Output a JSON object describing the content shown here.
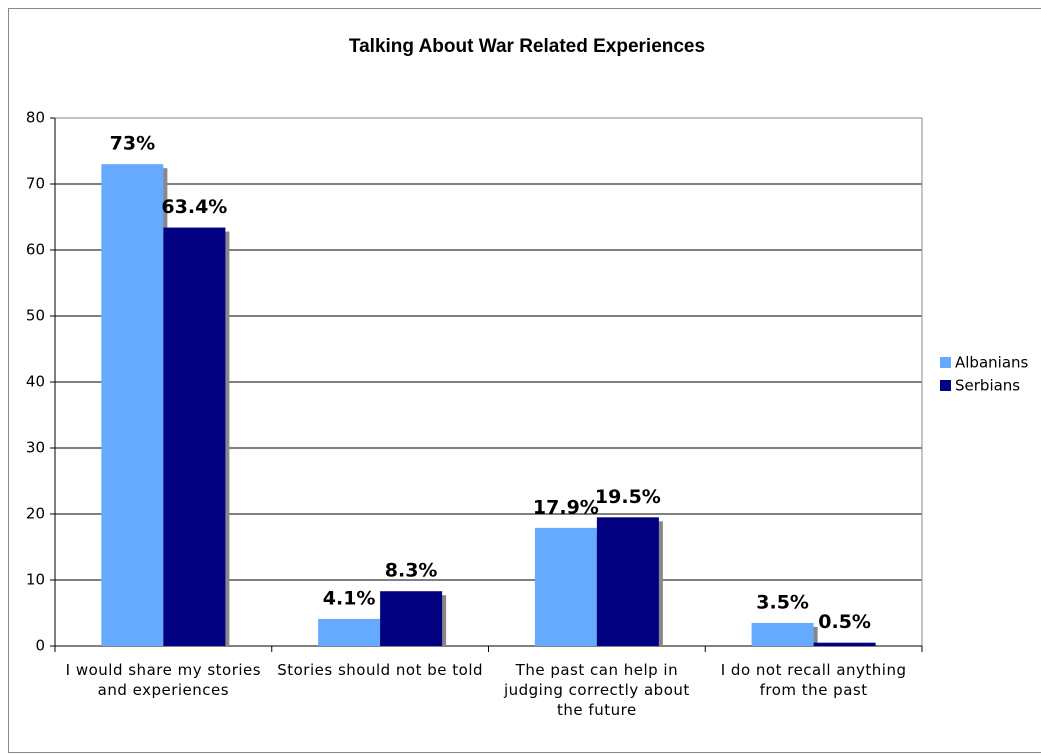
{
  "chart_data": {
    "type": "bar",
    "title": "Talking About War Related Experiences",
    "categories": [
      "I would share my stories\nand experiences",
      "Stories should not be told",
      "The past can help in\njudging correctly about\nthe future",
      "I do not recall anything\nfrom the past"
    ],
    "series": [
      {
        "name": "Albanians",
        "color": "#66aaff",
        "values": [
          73,
          4.1,
          17.9,
          3.5
        ],
        "value_labels": [
          "73%",
          "4.1%",
          "17.9%",
          "3.5%"
        ]
      },
      {
        "name": "Serbians",
        "color": "#000080",
        "values": [
          63.4,
          8.3,
          19.5,
          0.5
        ],
        "value_labels": [
          "63.4%",
          "8.3%",
          "19.5%",
          "0.5%"
        ]
      }
    ],
    "ylim": [
      0,
      80
    ],
    "yticks": [
      0,
      10,
      20,
      30,
      40,
      50,
      60,
      70,
      80
    ],
    "grid": true,
    "legend": "right"
  }
}
